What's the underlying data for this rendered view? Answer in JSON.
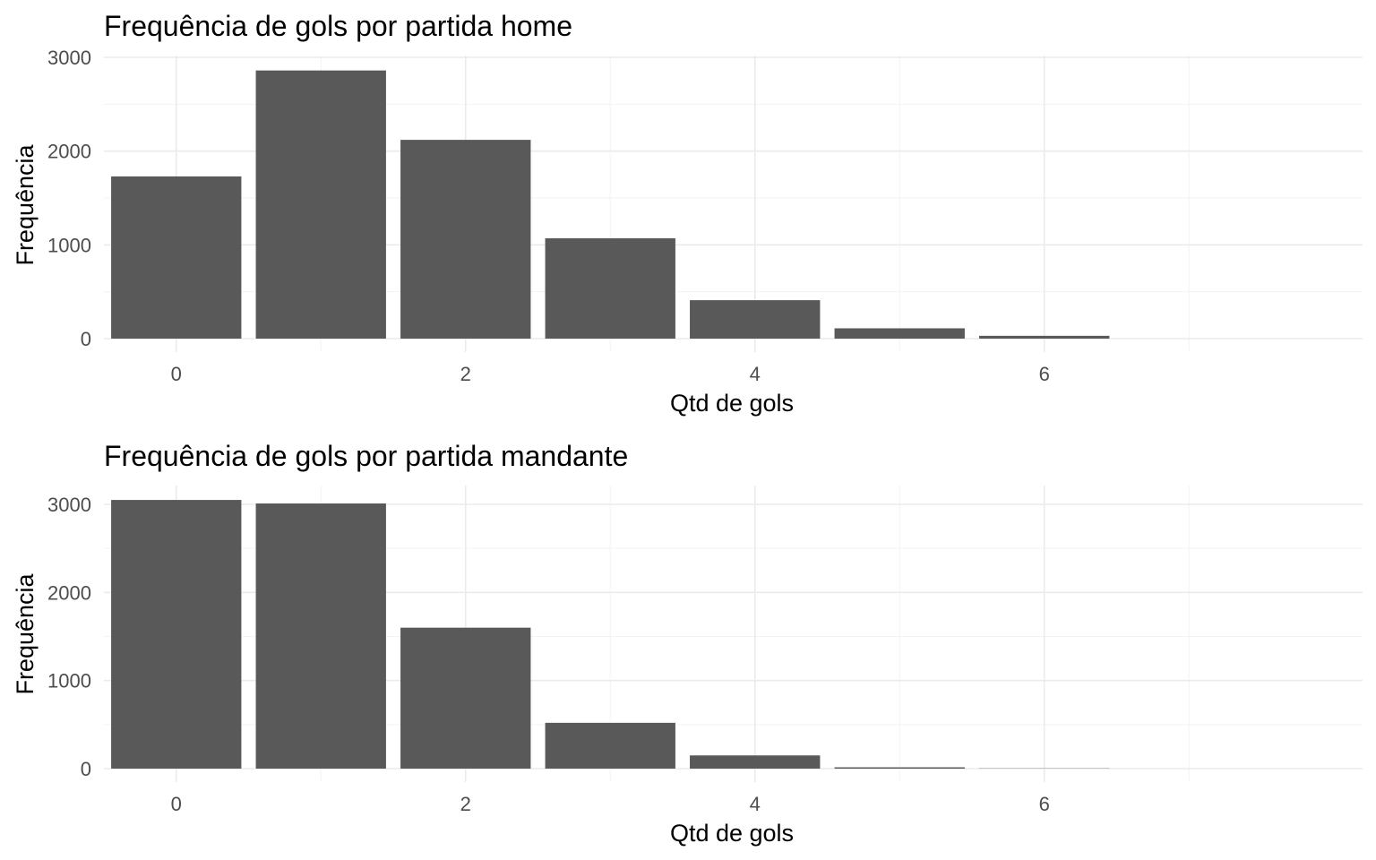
{
  "chart_data": [
    {
      "type": "bar",
      "title": "Frequência de gols por partida home",
      "xlabel": "Qtd de gols",
      "ylabel": "Frequência",
      "x": [
        0,
        1,
        2,
        3,
        4,
        5,
        6
      ],
      "values": [
        1730,
        2860,
        2120,
        1070,
        410,
        110,
        30
      ],
      "xlim": [
        -0.5,
        8.2
      ],
      "ylim": [
        0,
        3000
      ],
      "x_ticks": [
        0,
        2,
        4,
        6
      ],
      "y_ticks": [
        0,
        1000,
        2000,
        3000
      ],
      "bar_color": "#595959",
      "grid": true,
      "legend": "none"
    },
    {
      "type": "bar",
      "title": "Frequência de gols por partida mandante",
      "xlabel": "Qtd de gols",
      "ylabel": "Frequência",
      "x": [
        0,
        1,
        2,
        3,
        4,
        5,
        6
      ],
      "values": [
        3050,
        3010,
        1600,
        520,
        150,
        15,
        3
      ],
      "xlim": [
        -0.5,
        8.2
      ],
      "ylim": [
        0,
        3000
      ],
      "x_ticks": [
        0,
        2,
        4,
        6
      ],
      "y_ticks": [
        0,
        1000,
        2000,
        3000
      ],
      "bar_color": "#595959",
      "grid": true,
      "legend": "none"
    }
  ]
}
